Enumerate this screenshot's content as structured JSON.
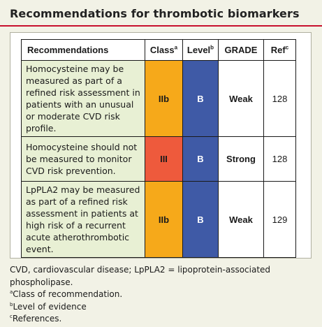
{
  "title": "Recommendations for thrombotic biomarkers",
  "colors": {
    "rule": "#c8102e",
    "recommendation_bg": "#e8f0d4",
    "class_IIb": "#f6a91a",
    "class_III": "#ee5a3c",
    "level_B": "#3f5aa6"
  },
  "table": {
    "headers": {
      "recommendations": "Recommendations",
      "class": "Class",
      "class_sup": "a",
      "level": "Level",
      "level_sup": "b",
      "grade": "GRADE",
      "ref": "Ref",
      "ref_sup": "c"
    },
    "rows": [
      {
        "recommendation": "Homocysteine may be measured as part of a refined risk assessment in patients with an unusual or moderate CVD risk profile.",
        "class": "IIb",
        "class_color": "#f6a91a",
        "level": "B",
        "grade": "Weak",
        "ref": "128"
      },
      {
        "recommendation": "Homocysteine should not be measured to monitor CVD risk prevention.",
        "class": "III",
        "class_color": "#ee5a3c",
        "level": "B",
        "grade": "Strong",
        "ref": "128"
      },
      {
        "recommendation": "LpPLA2 may be measured as part of a refined risk assessment in patients at high risk of a recurrent acute atherothrombotic event.",
        "class": "IIb",
        "class_color": "#f6a91a",
        "level": "B",
        "grade": "Weak",
        "ref": "129"
      }
    ]
  },
  "footer": {
    "abbrev": "CVD, cardiovascular disease; LpPLA2 = lipoprotein-associated phospholipase.",
    "note_a_mark": "a",
    "note_a": "Class of recommendation.",
    "note_b_mark": "b",
    "note_b": "Level of evidence",
    "note_c_mark": "c",
    "note_c": "References."
  }
}
